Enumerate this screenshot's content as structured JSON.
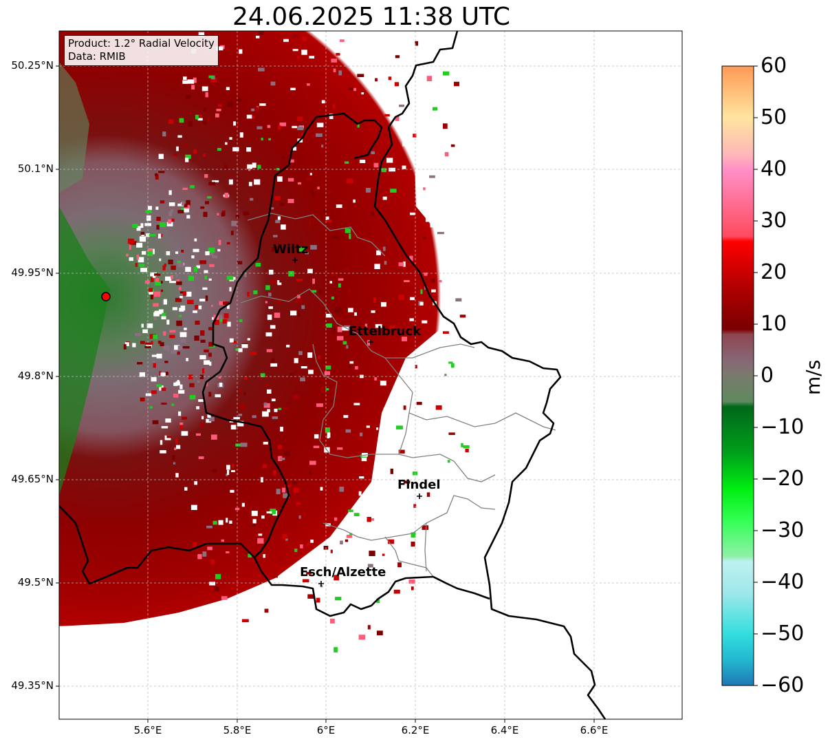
{
  "title": "24.06.2025 11:38 UTC",
  "info": {
    "line1": "Product: 1.2° Radial Velocity",
    "line2": "Data: RMIB"
  },
  "lat_labels": [
    "50.25°N",
    "50.1°N",
    "49.95°N",
    "49.8°N",
    "49.65°N",
    "49.5°N",
    "49.35°N"
  ],
  "lon_labels": [
    "5.6°E",
    "5.8°E",
    "6°E",
    "6.2°E",
    "6.4°E",
    "6.6°E"
  ],
  "cities": [
    {
      "name": "Wiltz"
    },
    {
      "name": "Ettelbruck"
    },
    {
      "name": "Findel"
    },
    {
      "name": "Esch/Alzette"
    }
  ],
  "colorbar": {
    "unit": "m/s",
    "ticks": [
      "60",
      "50",
      "40",
      "30",
      "20",
      "10",
      "0",
      "−10",
      "−20",
      "−30",
      "−40",
      "−50",
      "−60"
    ],
    "range": [
      -60,
      60
    ],
    "stops": [
      {
        "v": -60,
        "c": "#1f77b4"
      },
      {
        "v": -55,
        "c": "#22b8d0"
      },
      {
        "v": -50,
        "c": "#33dede"
      },
      {
        "v": -42,
        "c": "#9fe8ea"
      },
      {
        "v": -36,
        "c": "#bff0f0"
      },
      {
        "v": -35,
        "c": "#8ff0a8"
      },
      {
        "v": -28,
        "c": "#33ff55"
      },
      {
        "v": -22,
        "c": "#00ee11"
      },
      {
        "v": -15,
        "c": "#00a01a"
      },
      {
        "v": -6,
        "c": "#00681a"
      },
      {
        "v": -5,
        "c": "#5f8a5f"
      },
      {
        "v": 0,
        "c": "#7a7a6e"
      },
      {
        "v": 3,
        "c": "#876777"
      },
      {
        "v": 8,
        "c": "#8e4650"
      },
      {
        "v": 9,
        "c": "#7a0000"
      },
      {
        "v": 17,
        "c": "#b00000"
      },
      {
        "v": 26,
        "c": "#ff0000"
      },
      {
        "v": 27,
        "c": "#ff4a5e"
      },
      {
        "v": 40,
        "c": "#ff90c8"
      },
      {
        "v": 43,
        "c": "#ffb8b8"
      },
      {
        "v": 50,
        "c": "#ffe4a0"
      },
      {
        "v": 60,
        "c": "#ff9955"
      }
    ]
  },
  "colors": {
    "radar_site": "#ff0000",
    "border_country": "#000000",
    "border_canton": "#808080",
    "grid": "#bbbbbb"
  }
}
